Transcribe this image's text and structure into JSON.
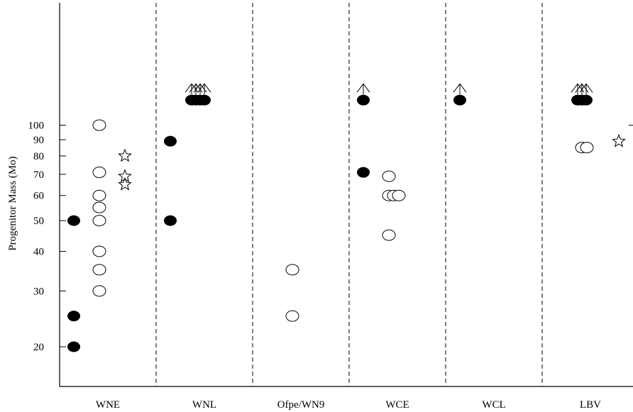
{
  "chart_data": {
    "type": "scatter",
    "title": "",
    "ylabel": "Progenitor Mass (Mo)",
    "yscale": "log",
    "ylim": [
      17,
      175
    ],
    "yticks": [
      20,
      30,
      40,
      50,
      60,
      70,
      80,
      90,
      100
    ],
    "categories": [
      "WNE",
      "WNL",
      "Ofpe/WN9",
      "WCE",
      "WCL",
      "LBV"
    ],
    "grid": false,
    "legend": "none",
    "series": [
      {
        "marker": "filled-circle",
        "points": [
          {
            "category": "WNE",
            "offset": 0,
            "y": 50
          },
          {
            "category": "WNE",
            "offset": 0,
            "y": 25
          },
          {
            "category": "WNE",
            "offset": 0,
            "y": 20
          },
          {
            "category": "WNL",
            "offset": 0,
            "y": 89
          },
          {
            "category": "WNL",
            "offset": 0,
            "y": 50
          },
          {
            "category": "WCE",
            "offset": 0,
            "y": 71
          }
        ]
      },
      {
        "marker": "filled-circle-lower-limit",
        "points": [
          {
            "category": "WNL",
            "offset": 0,
            "y": 120
          },
          {
            "category": "WNL",
            "offset": 1,
            "y": 120
          },
          {
            "category": "WNL",
            "offset": 2,
            "y": 120
          },
          {
            "category": "WNL",
            "offset": 3,
            "y": 120
          },
          {
            "category": "WCE",
            "offset": 0,
            "y": 120
          },
          {
            "category": "WCL",
            "offset": 0,
            "y": 120
          },
          {
            "category": "LBV",
            "offset": 0,
            "y": 120
          },
          {
            "category": "LBV",
            "offset": 1,
            "y": 120
          },
          {
            "category": "LBV",
            "offset": 2,
            "y": 120
          }
        ]
      },
      {
        "marker": "open-circle",
        "points": [
          {
            "category": "WNE",
            "offset": 1,
            "y": 100
          },
          {
            "category": "WNE",
            "offset": 1,
            "y": 71
          },
          {
            "category": "WNE",
            "offset": 1,
            "y": 60
          },
          {
            "category": "WNE",
            "offset": 1,
            "y": 55
          },
          {
            "category": "WNE",
            "offset": 1,
            "y": 50
          },
          {
            "category": "WNE",
            "offset": 1,
            "y": 40
          },
          {
            "category": "WNE",
            "offset": 1,
            "y": 35
          },
          {
            "category": "WNE",
            "offset": 1,
            "y": 30
          },
          {
            "category": "Ofpe/WN9",
            "offset": 1,
            "y": 35
          },
          {
            "category": "Ofpe/WN9",
            "offset": 1,
            "y": 25
          },
          {
            "category": "WCE",
            "offset": 1,
            "y": 69
          },
          {
            "category": "WCE",
            "offset": 1,
            "y": 60
          },
          {
            "category": "WCE",
            "offset": 2,
            "y": 60
          },
          {
            "category": "WCE",
            "offset": 3,
            "y": 60
          },
          {
            "category": "WCE",
            "offset": 1,
            "y": 45
          },
          {
            "category": "LBV",
            "offset": 1,
            "y": 85
          },
          {
            "category": "LBV",
            "offset": 2,
            "y": 85
          }
        ]
      },
      {
        "marker": "open-star",
        "points": [
          {
            "category": "WNE",
            "offset": 2,
            "y": 80
          },
          {
            "category": "WNE",
            "offset": 2,
            "y": 69
          },
          {
            "category": "WNE",
            "offset": 2,
            "y": 65
          },
          {
            "category": "LBV",
            "offset": 2,
            "y": 89
          }
        ]
      }
    ]
  }
}
